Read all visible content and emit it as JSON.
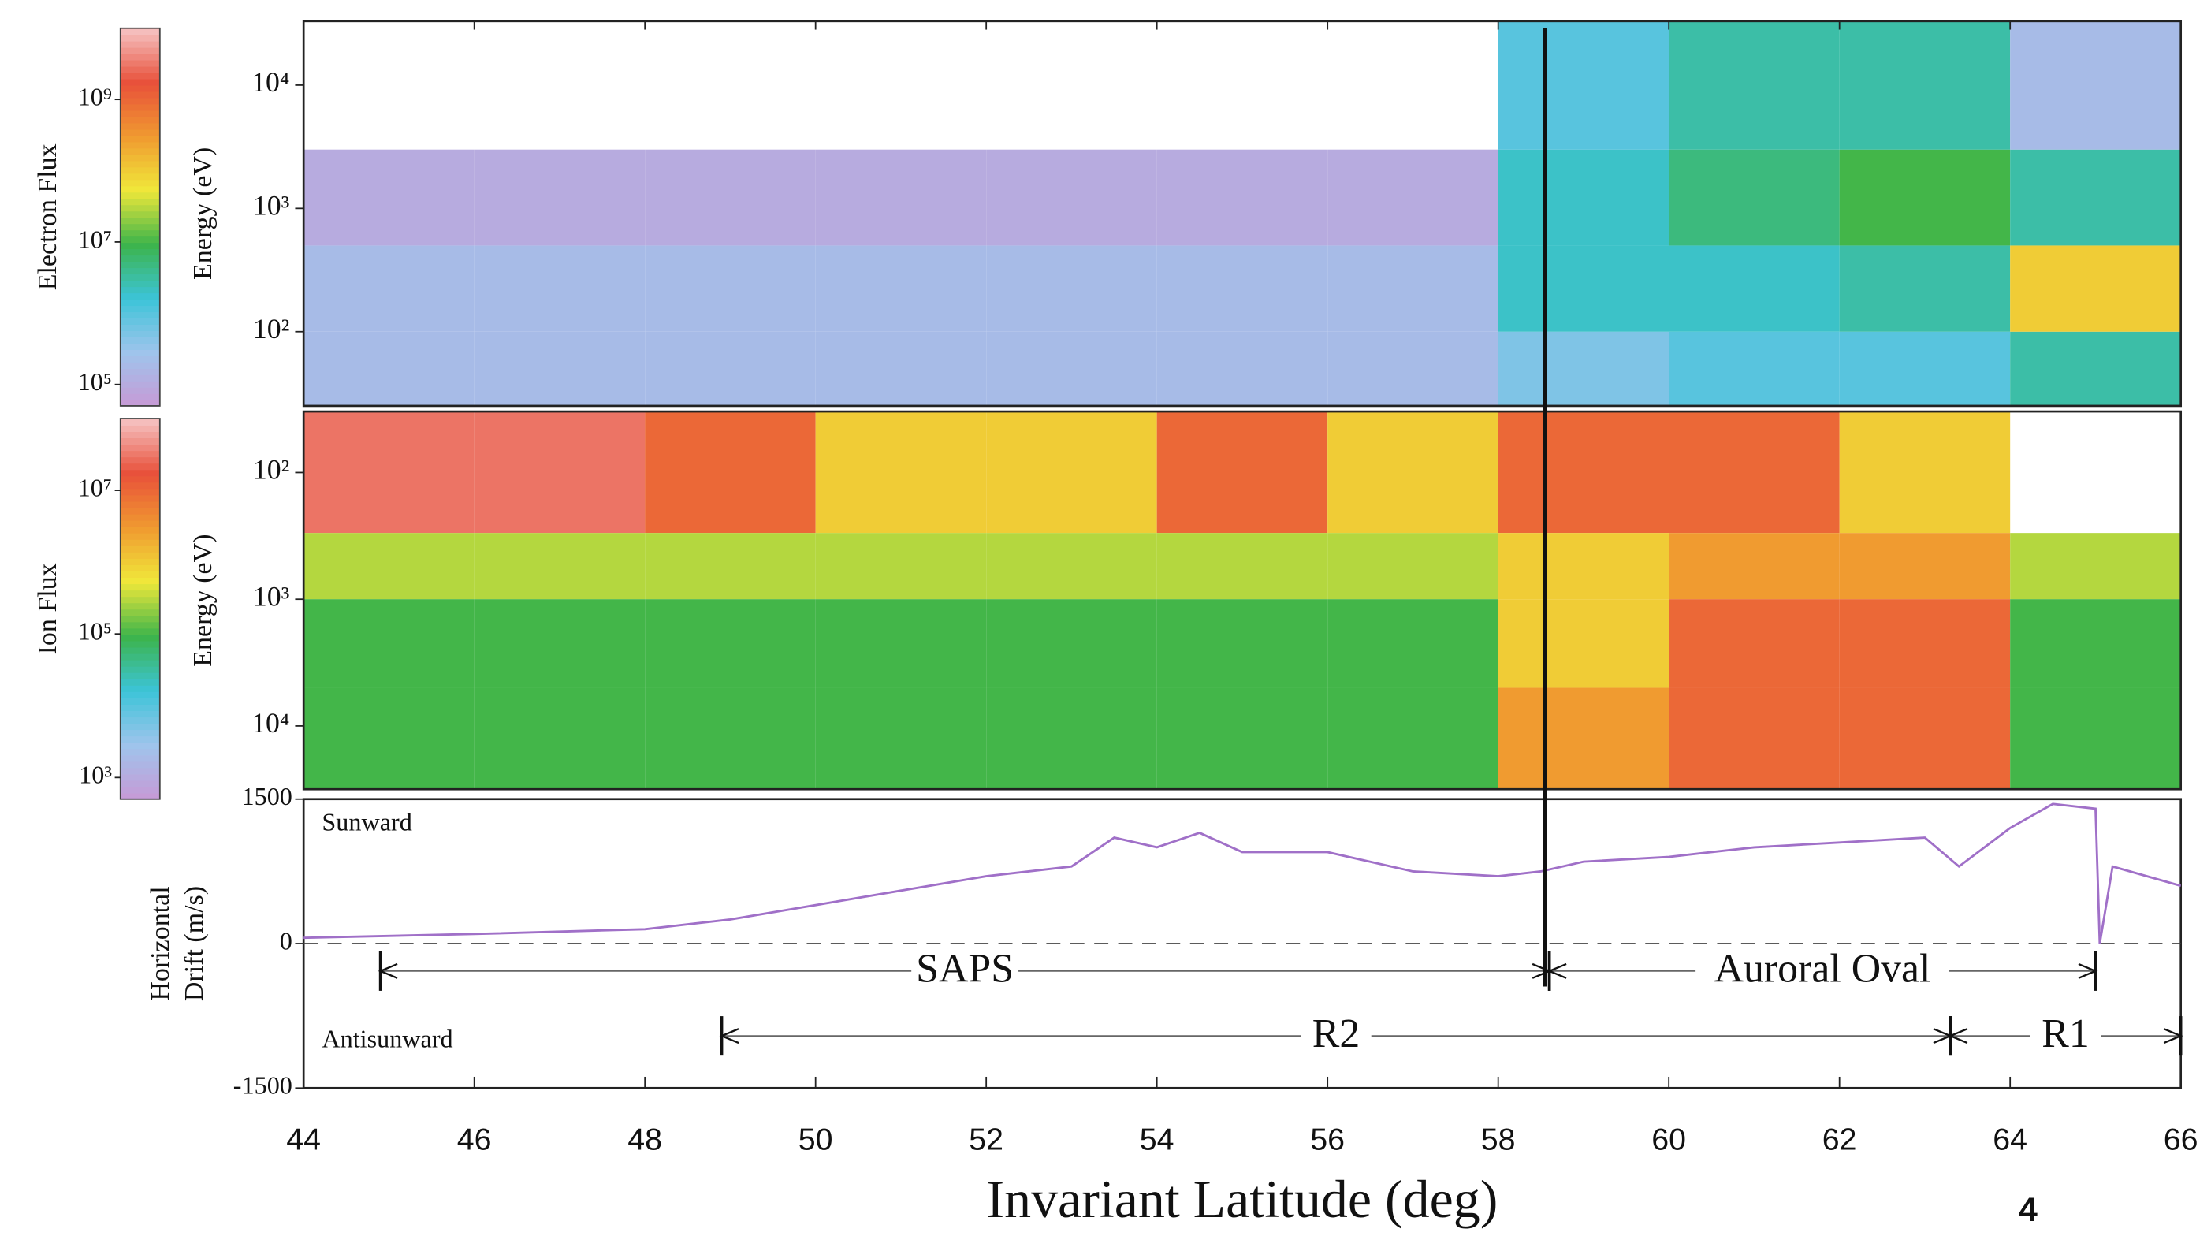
{
  "chart_data": [
    {
      "type": "heatmap",
      "colorbar_label": "Electron Flux",
      "ylabel": "Energy (eV)",
      "xlim": [
        44,
        66
      ],
      "ylim": [
        25,
        33000
      ],
      "ylog": true,
      "yticks": [
        {
          "value": 100,
          "label": "10²"
        },
        {
          "value": 1000,
          "label": "10³"
        },
        {
          "value": 10000,
          "label": "10⁴"
        }
      ],
      "x_edges": [
        44,
        46,
        48,
        50,
        52,
        54,
        56,
        58,
        60,
        62,
        64,
        66
      ],
      "y_edges": [
        25,
        100,
        500,
        3000,
        33000
      ],
      "values": [
        [
          200000,
          200000,
          200000,
          200000,
          200000,
          200000,
          200000,
          500000,
          1000000,
          1000000,
          3000000
        ],
        [
          200000,
          200000,
          200000,
          200000,
          200000,
          200000,
          200000,
          2000000,
          2000000,
          3000000,
          100000000
        ],
        [
          100000,
          100000,
          100000,
          100000,
          100000,
          100000,
          100000,
          2000000,
          5000000,
          10000000,
          3000000
        ],
        [
          null,
          null,
          null,
          null,
          null,
          null,
          null,
          1000000,
          3000000,
          3000000,
          200000
        ]
      ],
      "clim": [
        50000,
        10000000000
      ],
      "clog": true,
      "cticks": [
        {
          "value": 100000,
          "label": "10⁵"
        },
        {
          "value": 10000000,
          "label": "10⁷"
        },
        {
          "value": 1000000000,
          "label": "10⁹"
        }
      ],
      "colormap": [
        "#c79ad6",
        "#9fc4ec",
        "#3cc4d8",
        "#3cb44a",
        "#f0e83a",
        "#f09a30",
        "#e8503a",
        "#f6c4c4"
      ]
    },
    {
      "type": "heatmap",
      "colorbar_label": "Ion Flux",
      "ylabel": "Energy (eV)",
      "xlim": [
        44,
        66
      ],
      "ylim": [
        31600,
        33
      ],
      "ylog": true,
      "yticks": [
        {
          "value": 100,
          "label": "10²"
        },
        {
          "value": 1000,
          "label": "10³"
        },
        {
          "value": 10000,
          "label": "10⁴"
        }
      ],
      "x_edges": [
        44,
        46,
        48,
        50,
        52,
        54,
        56,
        58,
        60,
        62,
        64,
        66
      ],
      "y_edges": [
        33,
        300,
        1000,
        5000,
        31600
      ],
      "values": [
        [
          30000000,
          30000000,
          10000000,
          1000000,
          1000000,
          10000000,
          1000000,
          10000000,
          10000000,
          1000000,
          null
        ],
        [
          300000,
          300000,
          300000,
          300000,
          300000,
          300000,
          300000,
          1000000,
          3000000,
          3000000,
          300000
        ],
        [
          100000,
          100000,
          100000,
          100000,
          100000,
          100000,
          100000,
          1000000,
          10000000,
          10000000,
          100000
        ],
        [
          100000,
          100000,
          100000,
          100000,
          100000,
          100000,
          100000,
          3000000,
          10000000,
          10000000,
          100000
        ]
      ],
      "clim": [
        500,
        100000000
      ],
      "clog": true,
      "cticks": [
        {
          "value": 1000,
          "label": "10³"
        },
        {
          "value": 100000,
          "label": "10⁵"
        },
        {
          "value": 10000000,
          "label": "10⁷"
        }
      ],
      "colormap": [
        "#c79ad6",
        "#9fc4ec",
        "#3cc4d8",
        "#3cb44a",
        "#f0e83a",
        "#f09a30",
        "#e8503a",
        "#f6c4c4"
      ]
    },
    {
      "type": "line",
      "ylabel": [
        "Horizontal",
        "Drift (m/s)"
      ],
      "xlabel": "Invariant Latitude (deg)",
      "xlim": [
        44,
        66
      ],
      "xticks": [
        44,
        46,
        48,
        50,
        52,
        54,
        56,
        58,
        60,
        62,
        64,
        66
      ],
      "ylim": [
        -1500,
        1500
      ],
      "yticks": [
        -1500,
        0,
        1500
      ],
      "color": "#a070c8",
      "x": [
        44,
        46,
        48,
        49,
        50,
        51,
        52,
        53,
        53.5,
        54,
        54.5,
        55,
        56,
        57,
        58,
        58.5,
        59,
        60,
        61,
        62,
        63,
        63.4,
        64,
        64.5,
        65,
        65.05,
        65.2,
        66
      ],
      "values": [
        60,
        100,
        150,
        250,
        400,
        550,
        700,
        800,
        1100,
        1000,
        1150,
        950,
        950,
        750,
        700,
        750,
        850,
        900,
        1000,
        1050,
        1100,
        800,
        1200,
        1450,
        1400,
        0,
        800,
        600
      ],
      "upper_label": "Sunward",
      "lower_label": "Antisunward",
      "marker_x": 58.55,
      "spans_upper": [
        {
          "label": "SAPS",
          "start": 44.9,
          "end": 58.6
        },
        {
          "label": "Auroral Oval",
          "start": 58.6,
          "end": 65
        }
      ],
      "spans_lower": [
        {
          "label": "R2",
          "start": 48.9,
          "end": 63.3
        },
        {
          "label": "R1",
          "start": 63.3,
          "end": 66
        }
      ]
    }
  ],
  "page_number": "4"
}
